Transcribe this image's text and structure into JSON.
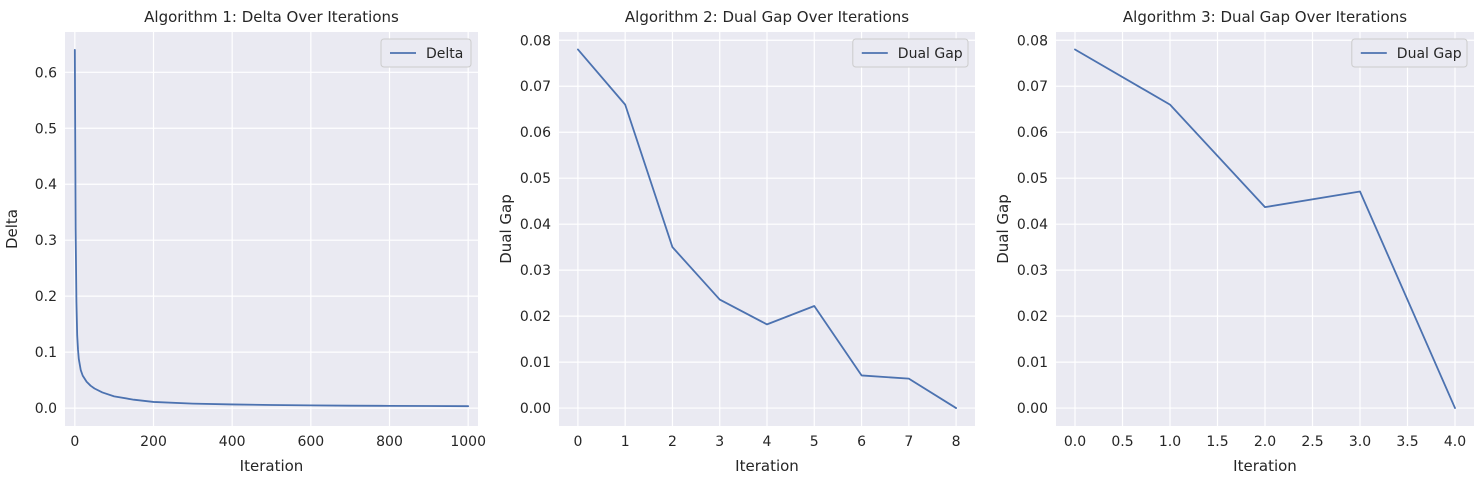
{
  "colors": {
    "series": "#4c72b0",
    "background": "#eaeaf2",
    "grid": "#ffffff"
  },
  "chart_data": [
    {
      "type": "line",
      "title": "Algorithm 1: Delta Over Iterations",
      "xlabel": "Iteration",
      "ylabel": "Delta",
      "xlim": [
        -25,
        1025
      ],
      "ylim": [
        -0.032,
        0.672
      ],
      "xticks": [
        0,
        200,
        400,
        600,
        800,
        1000
      ],
      "xtick_labels": [
        "0",
        "200",
        "400",
        "600",
        "800",
        "1000"
      ],
      "yticks": [
        0.0,
        0.1,
        0.2,
        0.3,
        0.4,
        0.5,
        0.6
      ],
      "ytick_labels": [
        "0.0",
        "0.1",
        "0.2",
        "0.3",
        "0.4",
        "0.5",
        "0.6"
      ],
      "grid": true,
      "legend": "top-right",
      "series": [
        {
          "name": "Delta",
          "x": [
            0,
            2,
            4,
            6,
            8,
            10,
            15,
            20,
            30,
            40,
            50,
            70,
            100,
            150,
            200,
            300,
            400,
            500,
            600,
            700,
            800,
            900,
            1000
          ],
          "y": [
            0.64,
            0.32,
            0.19,
            0.13,
            0.105,
            0.088,
            0.068,
            0.058,
            0.047,
            0.04,
            0.035,
            0.028,
            0.021,
            0.015,
            0.011,
            0.008,
            0.0065,
            0.0055,
            0.0048,
            0.0043,
            0.004,
            0.0037,
            0.0034
          ]
        }
      ]
    },
    {
      "type": "line",
      "title": "Algorithm 2: Dual Gap Over Iterations",
      "xlabel": "Iteration",
      "ylabel": "Dual Gap",
      "xlim": [
        -0.4,
        8.4
      ],
      "ylim": [
        -0.0039,
        0.0818
      ],
      "xticks": [
        0,
        1,
        2,
        3,
        4,
        5,
        6,
        7,
        8
      ],
      "xtick_labels": [
        "0",
        "1",
        "2",
        "3",
        "4",
        "5",
        "6",
        "7",
        "8"
      ],
      "yticks": [
        0.0,
        0.01,
        0.02,
        0.03,
        0.04,
        0.05,
        0.06,
        0.07,
        0.08
      ],
      "ytick_labels": [
        "0.00",
        "0.01",
        "0.02",
        "0.03",
        "0.04",
        "0.05",
        "0.06",
        "0.07",
        "0.08"
      ],
      "grid": true,
      "legend": "top-right",
      "series": [
        {
          "name": "Dual Gap",
          "x": [
            0,
            1,
            2,
            3,
            4,
            5,
            6,
            7,
            8
          ],
          "y": [
            0.078,
            0.066,
            0.035,
            0.0236,
            0.0182,
            0.0222,
            0.0071,
            0.0064,
            0.0
          ]
        }
      ]
    },
    {
      "type": "line",
      "title": "Algorithm 3: Dual Gap Over Iterations",
      "xlabel": "Iteration",
      "ylabel": "Dual Gap",
      "xlim": [
        -0.2,
        4.2
      ],
      "ylim": [
        -0.0039,
        0.0818
      ],
      "xticks": [
        0,
        0.5,
        1,
        1.5,
        2,
        2.5,
        3,
        3.5,
        4
      ],
      "xtick_labels": [
        "0.0",
        "0.5",
        "1.0",
        "1.5",
        "2.0",
        "2.5",
        "3.0",
        "3.5",
        "4.0"
      ],
      "yticks": [
        0.0,
        0.01,
        0.02,
        0.03,
        0.04,
        0.05,
        0.06,
        0.07,
        0.08
      ],
      "ytick_labels": [
        "0.00",
        "0.01",
        "0.02",
        "0.03",
        "0.04",
        "0.05",
        "0.06",
        "0.07",
        "0.08"
      ],
      "grid": true,
      "legend": "top-right",
      "series": [
        {
          "name": "Dual Gap",
          "x": [
            0,
            1,
            2,
            3,
            4
          ],
          "y": [
            0.078,
            0.066,
            0.0437,
            0.0471,
            0.0
          ]
        }
      ]
    }
  ]
}
